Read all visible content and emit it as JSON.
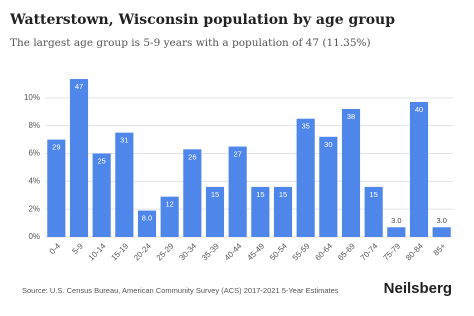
{
  "chart_data": {
    "type": "bar",
    "title": "Watterstown, Wisconsin population by age group",
    "subtitle": "The largest age group is 5-9 years with a population of 47 (11.35%)",
    "categories": [
      "0-4",
      "5-9",
      "10-14",
      "15-19",
      "20-24",
      "25-29",
      "30-34",
      "35-39",
      "40-44",
      "45-49",
      "50-54",
      "55-59",
      "60-64",
      "65-69",
      "70-74",
      "75-79",
      "80-84",
      "85+"
    ],
    "values": [
      7.0,
      11.35,
      6.0,
      7.5,
      1.9,
      2.9,
      6.3,
      3.6,
      6.5,
      3.6,
      3.6,
      8.5,
      7.2,
      9.2,
      3.6,
      0.7,
      9.7,
      0.7
    ],
    "data_labels": [
      "29",
      "47",
      "25",
      "31",
      "8.0",
      "12",
      "26",
      "15",
      "27",
      "15",
      "15",
      "35",
      "30",
      "38",
      "15",
      "3.0",
      "40",
      "3.0"
    ],
    "color": "#4f86ea",
    "ylim": [
      0,
      12
    ],
    "yticks": [
      {
        "value": 0,
        "label": "0%"
      },
      {
        "value": 2,
        "label": "2%"
      },
      {
        "value": 4,
        "label": "4%"
      },
      {
        "value": 6,
        "label": "6%"
      },
      {
        "value": 8,
        "label": "8%"
      },
      {
        "value": 10,
        "label": "10%"
      }
    ],
    "grid": true,
    "source": "Source: U.S. Census Bureau, American Community Survey (ACS) 2017-2021 5-Year Estimates",
    "brand": "Neilsberg"
  }
}
